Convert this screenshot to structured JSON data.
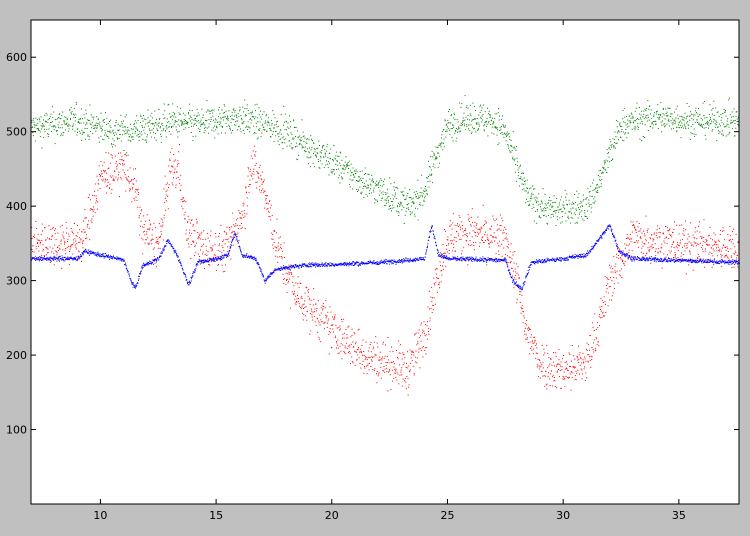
{
  "chart_data": {
    "type": "scatter",
    "title": "",
    "xlabel": "",
    "ylabel": "",
    "xlim": [
      7,
      37.6
    ],
    "ylim": [
      0,
      650
    ],
    "x_ticks": [
      10,
      15,
      20,
      25,
      30,
      35
    ],
    "y_ticks": [
      100,
      200,
      300,
      400,
      500,
      600
    ],
    "grid": false,
    "legend": "none",
    "colors": {
      "figure_background": "#c0c0c0",
      "axes_background": "#ffffff",
      "axis": "#000000"
    },
    "series": [
      {
        "color": "#008000",
        "spread": 22,
        "points": [
          [
            7,
            505
          ],
          [
            9,
            515
          ],
          [
            10,
            505
          ],
          [
            11,
            500
          ],
          [
            12.5,
            510
          ],
          [
            13,
            515
          ],
          [
            14,
            510
          ],
          [
            15,
            515
          ],
          [
            16,
            520
          ],
          [
            17,
            510
          ],
          [
            17.8,
            505
          ],
          [
            18.5,
            490
          ],
          [
            19.5,
            470
          ],
          [
            20.5,
            450
          ],
          [
            21.5,
            430
          ],
          [
            22.5,
            415
          ],
          [
            23.3,
            400
          ],
          [
            24,
            420
          ],
          [
            24.5,
            470
          ],
          [
            25,
            510
          ],
          [
            26,
            520
          ],
          [
            27,
            515
          ],
          [
            27.5,
            500
          ],
          [
            28,
            450
          ],
          [
            28.5,
            410
          ],
          [
            29.5,
            395
          ],
          [
            31,
            400
          ],
          [
            31.5,
            430
          ],
          [
            32,
            470
          ],
          [
            32.5,
            510
          ],
          [
            34,
            520
          ],
          [
            36,
            515
          ],
          [
            37.6,
            515
          ]
        ]
      },
      {
        "color": "#ff0000",
        "spread": 30,
        "points": [
          [
            7,
            350
          ],
          [
            9.2,
            355
          ],
          [
            9.7,
            410
          ],
          [
            10,
            440
          ],
          [
            11,
            455
          ],
          [
            11.5,
            420
          ],
          [
            11.8,
            370
          ],
          [
            12.5,
            345
          ],
          [
            13,
            450
          ],
          [
            13.4,
            450
          ],
          [
            13.7,
            370
          ],
          [
            14.5,
            340
          ],
          [
            15.5,
            345
          ],
          [
            16.2,
            400
          ],
          [
            16.5,
            460
          ],
          [
            17,
            430
          ],
          [
            17.5,
            360
          ],
          [
            18,
            310
          ],
          [
            18.5,
            280
          ],
          [
            19.5,
            250
          ],
          [
            20.5,
            220
          ],
          [
            21.5,
            200
          ],
          [
            22.5,
            190
          ],
          [
            23.3,
            180
          ],
          [
            24,
            230
          ],
          [
            24.5,
            300
          ],
          [
            25,
            360
          ],
          [
            26,
            365
          ],
          [
            27.5,
            355
          ],
          [
            28,
            300
          ],
          [
            28.3,
            240
          ],
          [
            29,
            190
          ],
          [
            30,
            180
          ],
          [
            31,
            190
          ],
          [
            31.5,
            240
          ],
          [
            32,
            300
          ],
          [
            33,
            360
          ],
          [
            35,
            350
          ],
          [
            37.6,
            345
          ]
        ]
      },
      {
        "color": "#0000ff",
        "spread": 3,
        "points": [
          [
            7,
            330
          ],
          [
            9,
            330
          ],
          [
            9.3,
            340
          ],
          [
            10,
            335
          ],
          [
            11,
            328
          ],
          [
            11.3,
            300
          ],
          [
            11.5,
            290
          ],
          [
            11.8,
            320
          ],
          [
            12.5,
            330
          ],
          [
            12.9,
            355
          ],
          [
            13.3,
            335
          ],
          [
            13.8,
            295
          ],
          [
            14.2,
            325
          ],
          [
            15,
            330
          ],
          [
            15.5,
            335
          ],
          [
            15.8,
            365
          ],
          [
            16.1,
            335
          ],
          [
            16.7,
            330
          ],
          [
            17.1,
            300
          ],
          [
            17.5,
            315
          ],
          [
            18,
            318
          ],
          [
            19,
            322
          ],
          [
            20,
            322
          ],
          [
            22,
            325
          ],
          [
            24,
            330
          ],
          [
            24.3,
            375
          ],
          [
            24.6,
            335
          ],
          [
            25,
            330
          ],
          [
            27.5,
            328
          ],
          [
            27.8,
            300
          ],
          [
            28.2,
            290
          ],
          [
            28.6,
            325
          ],
          [
            30,
            330
          ],
          [
            31,
            335
          ],
          [
            31.5,
            355
          ],
          [
            32,
            375
          ],
          [
            32.4,
            340
          ],
          [
            33,
            330
          ],
          [
            37.6,
            325
          ]
        ]
      }
    ]
  }
}
